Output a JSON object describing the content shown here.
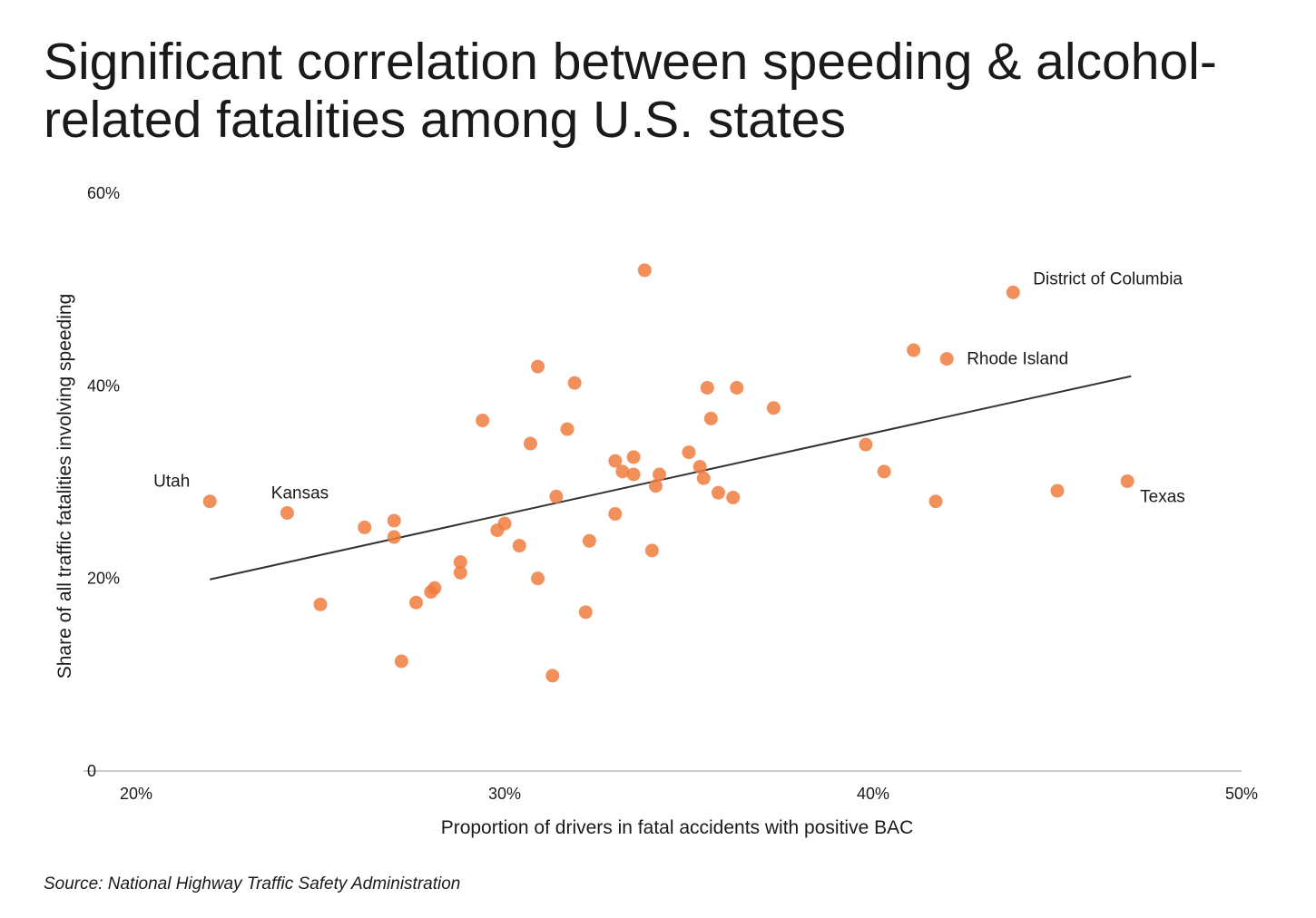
{
  "title_lines": [
    "Significant correlation between speeding & alcohol-",
    "related fatalities among U.S. states"
  ],
  "source": "Source: National Highway Traffic Safety Administration",
  "colors": {
    "point": "#f07c3e",
    "trend": "#333333",
    "axis": "#cccccc",
    "text": "#1a1a1a"
  },
  "chart_data": {
    "type": "scatter",
    "xlabel": "Proportion of drivers in fatal accidents with positive BAC",
    "ylabel": "Share of all traffic fatalities involving speeding",
    "xlim": [
      0.2,
      0.5
    ],
    "ylim": [
      0,
      0.6
    ],
    "x_ticks": [
      {
        "value": 0.2,
        "label": "20%"
      },
      {
        "value": 0.3,
        "label": "30%"
      },
      {
        "value": 0.4,
        "label": "40%"
      },
      {
        "value": 0.5,
        "label": "50%"
      }
    ],
    "y_ticks": [
      {
        "value": 0,
        "label": "0"
      },
      {
        "value": 0.2,
        "label": "20%"
      },
      {
        "value": 0.4,
        "label": "40%"
      },
      {
        "value": 0.6,
        "label": "60%"
      }
    ],
    "grid": false,
    "trendline": {
      "x": [
        0.22,
        0.47
      ],
      "y": [
        0.199,
        0.41
      ]
    },
    "points": [
      {
        "x": 0.22,
        "y": 0.28,
        "label": "Utah"
      },
      {
        "x": 0.241,
        "y": 0.268,
        "label": "Kansas"
      },
      {
        "x": 0.25,
        "y": 0.173
      },
      {
        "x": 0.262,
        "y": 0.253
      },
      {
        "x": 0.27,
        "y": 0.26
      },
      {
        "x": 0.27,
        "y": 0.243
      },
      {
        "x": 0.272,
        "y": 0.114
      },
      {
        "x": 0.276,
        "y": 0.175
      },
      {
        "x": 0.28,
        "y": 0.186
      },
      {
        "x": 0.281,
        "y": 0.19
      },
      {
        "x": 0.288,
        "y": 0.217
      },
      {
        "x": 0.288,
        "y": 0.206
      },
      {
        "x": 0.294,
        "y": 0.364
      },
      {
        "x": 0.298,
        "y": 0.25
      },
      {
        "x": 0.3,
        "y": 0.257
      },
      {
        "x": 0.304,
        "y": 0.234
      },
      {
        "x": 0.307,
        "y": 0.34
      },
      {
        "x": 0.309,
        "y": 0.42
      },
      {
        "x": 0.309,
        "y": 0.2
      },
      {
        "x": 0.313,
        "y": 0.099
      },
      {
        "x": 0.314,
        "y": 0.285
      },
      {
        "x": 0.317,
        "y": 0.355
      },
      {
        "x": 0.319,
        "y": 0.403
      },
      {
        "x": 0.322,
        "y": 0.165
      },
      {
        "x": 0.323,
        "y": 0.239
      },
      {
        "x": 0.33,
        "y": 0.322
      },
      {
        "x": 0.33,
        "y": 0.267
      },
      {
        "x": 0.332,
        "y": 0.311
      },
      {
        "x": 0.335,
        "y": 0.326
      },
      {
        "x": 0.335,
        "y": 0.308
      },
      {
        "x": 0.338,
        "y": 0.52
      },
      {
        "x": 0.34,
        "y": 0.229
      },
      {
        "x": 0.341,
        "y": 0.296
      },
      {
        "x": 0.342,
        "y": 0.308
      },
      {
        "x": 0.35,
        "y": 0.331
      },
      {
        "x": 0.353,
        "y": 0.316
      },
      {
        "x": 0.354,
        "y": 0.304
      },
      {
        "x": 0.355,
        "y": 0.398
      },
      {
        "x": 0.356,
        "y": 0.366
      },
      {
        "x": 0.358,
        "y": 0.289
      },
      {
        "x": 0.362,
        "y": 0.284
      },
      {
        "x": 0.363,
        "y": 0.398
      },
      {
        "x": 0.373,
        "y": 0.377
      },
      {
        "x": 0.398,
        "y": 0.339
      },
      {
        "x": 0.403,
        "y": 0.311
      },
      {
        "x": 0.411,
        "y": 0.437
      },
      {
        "x": 0.417,
        "y": 0.28
      },
      {
        "x": 0.42,
        "y": 0.428,
        "label": "Rhode Island"
      },
      {
        "x": 0.438,
        "y": 0.497,
        "label": "District of Columbia"
      },
      {
        "x": 0.45,
        "y": 0.291
      },
      {
        "x": 0.469,
        "y": 0.301,
        "label": "Texas"
      }
    ]
  }
}
